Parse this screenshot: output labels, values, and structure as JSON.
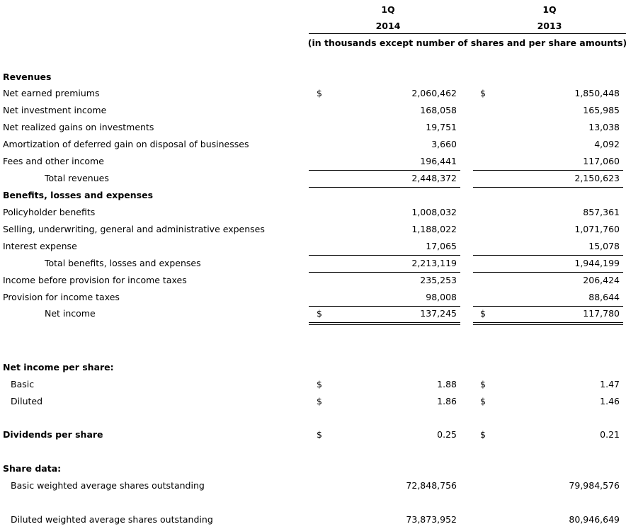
{
  "header": {
    "columns": [
      {
        "period": "1Q",
        "year": "2014"
      },
      {
        "period": "1Q",
        "year": "2013"
      }
    ],
    "note": "(in thousands except number of shares and per share amounts)"
  },
  "rows": [
    {
      "label": "Revenues"
    },
    {
      "label": "Net earned premiums",
      "currency": [
        "$",
        "$"
      ],
      "values": [
        "2,060,462",
        "1,850,448"
      ]
    },
    {
      "label": "Net investment income",
      "values": [
        "168,058",
        "165,985"
      ]
    },
    {
      "label": "Net realized gains on investments",
      "values": [
        "19,751",
        "13,038"
      ]
    },
    {
      "label": "Amortization of deferred gain on disposal of businesses",
      "values": [
        "3,660",
        "4,092"
      ]
    },
    {
      "label": "Fees and other income",
      "values": [
        "196,441",
        "117,060"
      ]
    },
    {
      "label": "Total revenues",
      "values": [
        "2,448,372",
        "2,150,623"
      ]
    },
    {
      "label": "Benefits, losses and expenses"
    },
    {
      "label": "Policyholder benefits",
      "values": [
        "1,008,032",
        "857,361"
      ]
    },
    {
      "label": "Selling, underwriting, general and administrative expenses",
      "values": [
        "1,188,022",
        "1,071,760"
      ]
    },
    {
      "label": "Interest expense",
      "values": [
        "17,065",
        "15,078"
      ]
    },
    {
      "label": "Total benefits, losses and expenses",
      "values": [
        "2,213,119",
        "1,944,199"
      ]
    },
    {
      "label": "Income before provision for income taxes",
      "values": [
        "235,253",
        "206,424"
      ]
    },
    {
      "label": "Provision for income taxes",
      "values": [
        "98,008",
        "88,644"
      ]
    },
    {
      "label": "Net income",
      "currency": [
        "$",
        "$"
      ],
      "values": [
        "137,245",
        "117,780"
      ]
    },
    {
      "label": "Net income per share:"
    },
    {
      "label": "Basic",
      "currency": [
        "$",
        "$"
      ],
      "values": [
        "1.88",
        "1.47"
      ]
    },
    {
      "label": "Diluted",
      "currency": [
        "$",
        "$"
      ],
      "values": [
        "1.86",
        "1.46"
      ]
    },
    {
      "label": "Dividends per share",
      "currency": [
        "$",
        "$"
      ],
      "values": [
        "0.25",
        "0.21"
      ]
    },
    {
      "label": "Share data:"
    },
    {
      "label": "Basic weighted average shares outstanding",
      "values": [
        "72,848,756",
        "79,984,576"
      ]
    },
    {
      "label": "Diluted weighted average shares outstanding",
      "values": [
        "73,873,952",
        "80,946,649"
      ]
    }
  ]
}
